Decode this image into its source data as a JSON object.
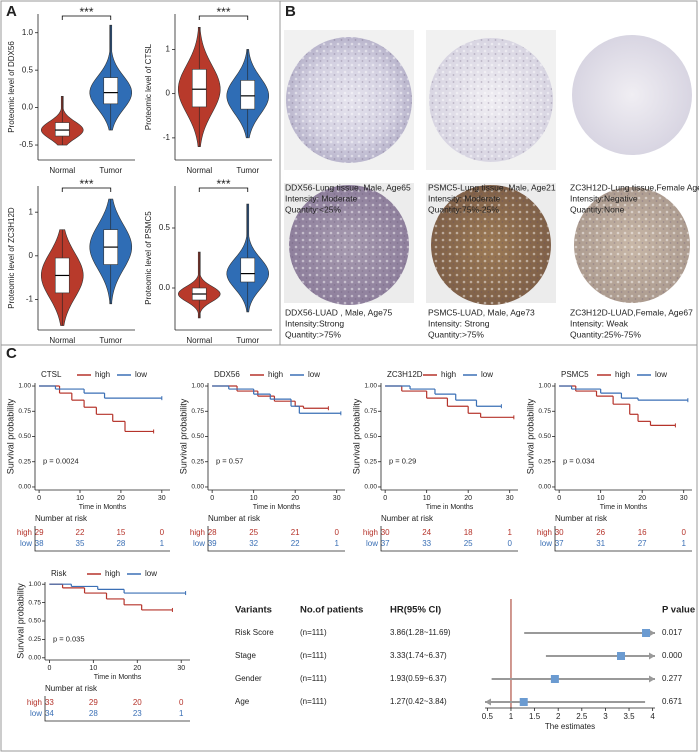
{
  "panel_labels": [
    "A",
    "B",
    "C"
  ],
  "chart_data": [
    {
      "type": "violin",
      "ylabel": "Proteomic level of DDX56",
      "categories": [
        "Normal",
        "Tumor"
      ],
      "colors": [
        "#b83a2b",
        "#2f6db5"
      ],
      "significance": "***",
      "stats": [
        {
          "min": -0.5,
          "q1": -0.38,
          "median": -0.3,
          "q3": -0.2,
          "max": 0.15
        },
        {
          "min": -0.3,
          "q1": 0.05,
          "median": 0.2,
          "q3": 0.4,
          "max": 1.1
        }
      ],
      "ylim": [
        -0.7,
        1.25
      ],
      "yticks": [
        -0.5,
        {
          "value": 0,
          "label": "0.0"
        },
        0.5,
        {
          "value": 1,
          "label": "1.0"
        }
      ]
    },
    {
      "type": "violin",
      "ylabel": "Proteomic level of CTSL",
      "categories": [
        "Normal",
        "Tumor"
      ],
      "colors": [
        "#b83a2b",
        "#2f6db5"
      ],
      "significance": "***",
      "stats": [
        {
          "min": -1.2,
          "q1": -0.3,
          "median": 0.1,
          "q3": 0.55,
          "max": 1.5
        },
        {
          "min": -1.0,
          "q1": -0.35,
          "median": -0.05,
          "q3": 0.3,
          "max": 1.0
        }
      ],
      "ylim": [
        -1.5,
        1.8
      ],
      "yticks": [
        -1,
        0,
        1
      ]
    },
    {
      "type": "violin",
      "ylabel": "Proteomic level of ZC3H12D",
      "categories": [
        "Normal",
        "Tumor"
      ],
      "colors": [
        "#b83a2b",
        "#2f6db5"
      ],
      "significance": "***",
      "stats": [
        {
          "min": -1.6,
          "q1": -0.85,
          "median": -0.45,
          "q3": -0.05,
          "max": 0.6
        },
        {
          "min": -1.1,
          "q1": -0.2,
          "median": 0.2,
          "q3": 0.6,
          "max": 1.3
        }
      ],
      "ylim": [
        -1.7,
        1.6
      ],
      "yticks": [
        -1,
        0,
        1
      ]
    },
    {
      "type": "violin",
      "ylabel": "Proteomic level of PSMC5",
      "categories": [
        "Normal",
        "Tumor"
      ],
      "colors": [
        "#b83a2b",
        "#2f6db5"
      ],
      "significance": "***",
      "stats": [
        {
          "min": -0.25,
          "q1": -0.1,
          "median": -0.05,
          "q3": 0.0,
          "max": 0.3
        },
        {
          "min": -0.2,
          "q1": 0.05,
          "median": 0.12,
          "q3": 0.25,
          "max": 0.7
        }
      ],
      "ylim": [
        -0.35,
        0.85
      ],
      "yticks": [
        {
          "value": 0,
          "label": "0.0"
        },
        0.5
      ]
    },
    {
      "type": "survival",
      "legend_title": "CTSL",
      "annotation": "p = 0.0024",
      "xlabel": "Time in Months",
      "ylabel": "Survival probability",
      "risk_title": "Number at risk",
      "xlim": [
        -1,
        32
      ],
      "xticks": [
        0,
        10,
        20,
        30
      ],
      "ylim": [
        -0.03,
        1.03
      ],
      "yticks": [
        {
          "value": 0,
          "label": "0.00"
        },
        0.25,
        {
          "value": 0.5,
          "label": "0.50"
        },
        0.75,
        {
          "value": 1,
          "label": "1.00"
        }
      ],
      "series": [
        {
          "name": "high",
          "color": "#b5332a",
          "x": [
            0,
            5,
            8,
            11,
            14,
            18,
            21,
            28
          ],
          "values": [
            1,
            0.93,
            0.86,
            0.79,
            0.72,
            0.65,
            0.55,
            0.55
          ],
          "at_risk": [
            29,
            22,
            15,
            0
          ]
        },
        {
          "name": "low",
          "color": "#3a6fb5",
          "x": [
            0,
            4,
            11,
            16,
            30
          ],
          "values": [
            1,
            0.97,
            0.93,
            0.88,
            0.88
          ],
          "at_risk": [
            38,
            35,
            28,
            1
          ]
        }
      ]
    },
    {
      "type": "survival",
      "legend_title": "DDX56",
      "annotation": "p = 0.57",
      "xlabel": "Time in Months",
      "ylabel": "Survival probability",
      "risk_title": "Number at risk",
      "xlim": [
        -1,
        32
      ],
      "xticks": [
        0,
        10,
        20,
        30
      ],
      "ylim": [
        -0.03,
        1.03
      ],
      "yticks": [
        {
          "value": 0,
          "label": "0.00"
        },
        0.25,
        {
          "value": 0.5,
          "label": "0.50"
        },
        0.75,
        {
          "value": 1,
          "label": "1.00"
        }
      ],
      "series": [
        {
          "name": "high",
          "color": "#b5332a",
          "x": [
            0,
            6,
            11,
            15,
            20,
            22,
            28
          ],
          "values": [
            1,
            0.95,
            0.9,
            0.85,
            0.8,
            0.78,
            0.78
          ],
          "at_risk": [
            28,
            25,
            21,
            0
          ]
        },
        {
          "name": "low",
          "color": "#3a6fb5",
          "x": [
            0,
            4,
            10,
            14,
            19,
            21,
            31
          ],
          "values": [
            1,
            0.97,
            0.92,
            0.87,
            0.8,
            0.73,
            0.73
          ],
          "at_risk": [
            39,
            32,
            22,
            1
          ]
        }
      ]
    },
    {
      "type": "survival",
      "legend_title": "ZC3H12D",
      "annotation": "p = 0.29",
      "xlabel": "Time in Months",
      "ylabel": "Survival probability",
      "risk_title": "Number at risk",
      "xlim": [
        -1,
        32
      ],
      "xticks": [
        0,
        10,
        20,
        30
      ],
      "ylim": [
        -0.03,
        1.03
      ],
      "yticks": [
        {
          "value": 0,
          "label": "0.00"
        },
        0.25,
        {
          "value": 0.5,
          "label": "0.50"
        },
        0.75,
        {
          "value": 1,
          "label": "1.00"
        }
      ],
      "series": [
        {
          "name": "high",
          "color": "#b5332a",
          "x": [
            0,
            4,
            10,
            15,
            20,
            23,
            31
          ],
          "values": [
            1,
            0.95,
            0.88,
            0.8,
            0.73,
            0.69,
            0.69
          ],
          "at_risk": [
            30,
            24,
            18,
            1
          ]
        },
        {
          "name": "low",
          "color": "#3a6fb5",
          "x": [
            0,
            6,
            12,
            17,
            22,
            28
          ],
          "values": [
            1,
            0.97,
            0.92,
            0.86,
            0.8,
            0.8
          ],
          "at_risk": [
            37,
            33,
            25,
            0
          ]
        }
      ]
    },
    {
      "type": "survival",
      "legend_title": "PSMC5",
      "annotation": "p = 0.034",
      "xlabel": "Time in Months",
      "ylabel": "Survival probability",
      "risk_title": "Number at risk",
      "xlim": [
        -1,
        32
      ],
      "xticks": [
        0,
        10,
        20,
        30
      ],
      "ylim": [
        -0.03,
        1.03
      ],
      "yticks": [
        {
          "value": 0,
          "label": "0.00"
        },
        0.25,
        {
          "value": 0.5,
          "label": "0.50"
        },
        0.75,
        {
          "value": 1,
          "label": "1.00"
        }
      ],
      "series": [
        {
          "name": "high",
          "color": "#b5332a",
          "x": [
            0,
            4,
            9,
            13,
            17,
            19,
            22,
            28
          ],
          "values": [
            1,
            0.95,
            0.9,
            0.82,
            0.72,
            0.65,
            0.61,
            0.61
          ],
          "at_risk": [
            30,
            26,
            16,
            0
          ]
        },
        {
          "name": "low",
          "color": "#3a6fb5",
          "x": [
            0,
            3,
            10,
            15,
            19,
            31
          ],
          "values": [
            1,
            0.97,
            0.93,
            0.88,
            0.86,
            0.86
          ],
          "at_risk": [
            37,
            31,
            27,
            1
          ]
        }
      ]
    },
    {
      "type": "survival",
      "legend_title": "Risk",
      "annotation": "p = 0.035",
      "xlabel": "Time in Months",
      "ylabel": "Survival probability",
      "risk_title": "Number at risk",
      "xlim": [
        -1,
        32
      ],
      "xticks": [
        0,
        10,
        20,
        30
      ],
      "ylim": [
        -0.03,
        1.03
      ],
      "yticks": [
        {
          "value": 0,
          "label": "0.00"
        },
        0.25,
        {
          "value": 0.5,
          "label": "0.50"
        },
        0.75,
        {
          "value": 1,
          "label": "1.00"
        }
      ],
      "series": [
        {
          "name": "high",
          "color": "#b5332a",
          "x": [
            0,
            3,
            8,
            13,
            17,
            21,
            28
          ],
          "values": [
            1,
            0.95,
            0.88,
            0.8,
            0.72,
            0.65,
            0.65
          ],
          "at_risk": [
            33,
            29,
            20,
            0
          ]
        },
        {
          "name": "low",
          "color": "#3a6fb5",
          "x": [
            0,
            5,
            11,
            17,
            31
          ],
          "values": [
            1,
            0.97,
            0.93,
            0.88,
            0.88
          ],
          "at_risk": [
            34,
            28,
            23,
            1
          ]
        }
      ]
    },
    {
      "type": "forest",
      "headers": [
        "Variants",
        "No.of patients",
        "HR(95% CI)",
        "P value"
      ],
      "categories": [
        "Risk Score",
        "Stage",
        "Gender",
        "Age"
      ],
      "patients": [
        "(n=111)",
        "(n=111)",
        "(n=111)",
        "(n=111)"
      ],
      "values": [
        3.86,
        3.33,
        1.93,
        1.27
      ],
      "lower": [
        1.28,
        1.74,
        0.59,
        0.42
      ],
      "upper": [
        11.69,
        6.37,
        6.37,
        3.84
      ],
      "value_labels": [
        "3.86(1.28~11.69)",
        "3.33(1.74~6.37)",
        "1.93(0.59~6.37)",
        "1.27(0.42~3.84)"
      ],
      "p_values": [
        "0.017",
        "0.000",
        "0.277",
        "0.671"
      ],
      "xlim": [
        0.45,
        4.05
      ],
      "xticks": [
        0.5,
        1,
        1.5,
        2,
        2.5,
        3,
        3.5,
        4
      ],
      "xlabel": "The estimates",
      "reference": 1,
      "color": "#6b9bd1",
      "whisker_color": "#999999",
      "reference_color": "#c0766b"
    }
  ],
  "images": [
    {
      "lines": [
        "DDX56-Lung tissue, Male, Age65",
        "Intensity: Moderate",
        "Quantity:<25%"
      ]
    },
    {
      "lines": [
        "PSMC5-Lung tissue, Male, Age21",
        "Intensity: Moderate",
        "Quantity:75%-25%"
      ]
    },
    {
      "lines": [
        "ZC3H12D-Lung tissue,Female Age49",
        "Intensity:Negative",
        "Quantity:None"
      ]
    },
    {
      "lines": [
        "DDX56-LUAD , Male, Age75",
        "Intensity:Strong",
        "Quantity:>75%"
      ]
    },
    {
      "lines": [
        "PSMC5-LUAD, Male, Age73",
        "Intensity: Strong",
        "Quantity:>75%"
      ]
    },
    {
      "lines": [
        "ZC3H12D-LUAD,Female, Age67",
        "Intensity: Weak",
        "Quantity:25%-75%"
      ]
    }
  ]
}
